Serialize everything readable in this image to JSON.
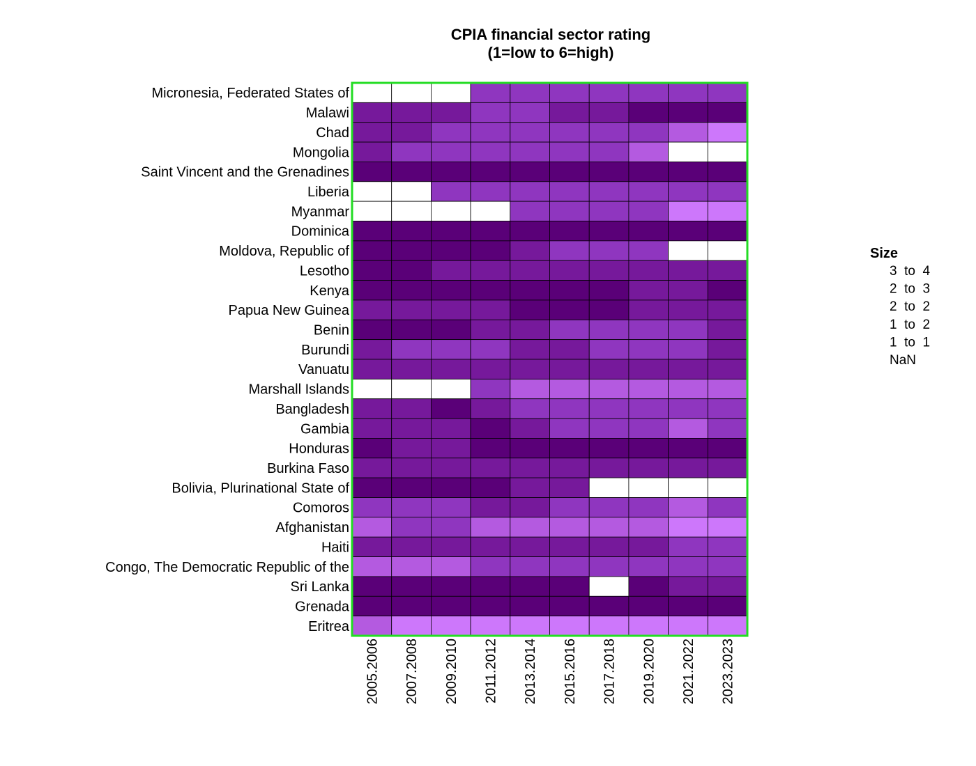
{
  "chart_data": {
    "type": "heatmap",
    "title": "CPIA financial sector rating",
    "subtitle": "(1=low to 6=high)",
    "xlabel": "",
    "ylabel": "",
    "legend": {
      "title": "Size",
      "placement": "right",
      "entries": [
        "3  to  4",
        "2  to  3",
        "2  to  2",
        "1  to  2",
        "1  to  1",
        "NaN"
      ]
    },
    "colors": {
      "border": "#22dd22",
      "cell_outline": "#000000",
      "nan": "#ffffff",
      "scale": [
        "#5a0078",
        "#76199b",
        "#8f36bf",
        "#b45ae0",
        "#cd77fb"
      ]
    },
    "x": [
      "2005.2006",
      "2007.2008",
      "2009.2010",
      "2011.2012",
      "2013.2014",
      "2015.2016",
      "2017.2018",
      "2019.2020",
      "2021.2022",
      "2023.2023"
    ],
    "y": [
      "Micronesia, Federated States of",
      "Malawi",
      "Chad",
      "Mongolia",
      "Saint Vincent and the Grenadines",
      "Liberia",
      "Myanmar",
      "Dominica",
      "Moldova, Republic of",
      "Lesotho",
      "Kenya",
      "Papua New Guinea",
      "Benin",
      "Burundi",
      "Vanuatu",
      "Marshall Islands",
      "Bangladesh",
      "Gambia",
      "Honduras",
      "Burkina Faso",
      "Bolivia, Plurinational State of",
      "Comoros",
      "Afghanistan",
      "Haiti",
      "Congo, The Democratic Republic of the",
      "Sri Lanka",
      "Grenada",
      "Eritrea"
    ],
    "values": [
      [
        null,
        null,
        null,
        2.5,
        2.5,
        2.5,
        2.5,
        2.5,
        2.5,
        2.5
      ],
      [
        3,
        3,
        3,
        2.5,
        2.5,
        3,
        3,
        3.5,
        3.5,
        3.5
      ],
      [
        3,
        3,
        2.5,
        2.5,
        2.5,
        2.5,
        2.5,
        2.5,
        2,
        1.5
      ],
      [
        3,
        2.5,
        2.5,
        2.5,
        2.5,
        2.5,
        2.5,
        2,
        null,
        null
      ],
      [
        3.5,
        3.5,
        3.5,
        3.5,
        3.5,
        3.5,
        3.5,
        3.5,
        3.5,
        3.5
      ],
      [
        null,
        null,
        2.5,
        2.5,
        2.5,
        2.5,
        2.5,
        2.5,
        2.5,
        2.5
      ],
      [
        null,
        null,
        null,
        null,
        2.5,
        2.5,
        2.5,
        2.5,
        1.5,
        1.5
      ],
      [
        3.5,
        3.5,
        3.5,
        3.5,
        3.5,
        3.5,
        3.5,
        3.5,
        3.5,
        3.5
      ],
      [
        3.5,
        3.5,
        3.5,
        3.5,
        3,
        2.5,
        2.5,
        2.5,
        null,
        null
      ],
      [
        3.5,
        3.5,
        3,
        3,
        3,
        3,
        3,
        3,
        3,
        3
      ],
      [
        3.5,
        3.5,
        3.5,
        3.5,
        3.5,
        3.5,
        3.5,
        3,
        3,
        3.5
      ],
      [
        3,
        3,
        3,
        3,
        3.5,
        3.5,
        3.5,
        3,
        3,
        3
      ],
      [
        3.5,
        3.5,
        3.5,
        3,
        3,
        2.5,
        2.5,
        2.5,
        2.5,
        3
      ],
      [
        3,
        2.5,
        2.5,
        2.5,
        3,
        3,
        2.5,
        2.5,
        2.5,
        3
      ],
      [
        3,
        3,
        3,
        3,
        3,
        3,
        3,
        3,
        3,
        3
      ],
      [
        null,
        null,
        null,
        2.5,
        2,
        2,
        2,
        2,
        2,
        2
      ],
      [
        3,
        3,
        3.5,
        3,
        2.5,
        2.5,
        2.5,
        2.5,
        2.5,
        2.5
      ],
      [
        3,
        3,
        3,
        3.5,
        3,
        2.5,
        2.5,
        2.5,
        2,
        2.5
      ],
      [
        3.5,
        3,
        3,
        3.5,
        3.5,
        3.5,
        3.5,
        3.5,
        3.5,
        3.5
      ],
      [
        3,
        3,
        3,
        3,
        3,
        3,
        3,
        3,
        3,
        3
      ],
      [
        3.5,
        3.5,
        3.5,
        3.5,
        3,
        3,
        null,
        null,
        null,
        null
      ],
      [
        2.5,
        2.5,
        2.5,
        3,
        3,
        2.5,
        2.5,
        2.5,
        2,
        2.5
      ],
      [
        2,
        2.5,
        2.5,
        2,
        2,
        2,
        2,
        2,
        1.5,
        1.5
      ],
      [
        3,
        3,
        3,
        3,
        3,
        3,
        3,
        3,
        2.5,
        2.5
      ],
      [
        2,
        2,
        2,
        2.5,
        2.5,
        2.5,
        2.5,
        2.5,
        2.5,
        2.5
      ],
      [
        3.5,
        3.5,
        3.5,
        3.5,
        3.5,
        3.5,
        null,
        3.5,
        3,
        3
      ],
      [
        3.5,
        3.5,
        3.5,
        3.5,
        3.5,
        3.5,
        3.5,
        3.5,
        3.5,
        3.5
      ],
      [
        2,
        1.5,
        1.5,
        1.5,
        1.5,
        1.5,
        1.5,
        1.5,
        1.5,
        1.5
      ]
    ]
  }
}
